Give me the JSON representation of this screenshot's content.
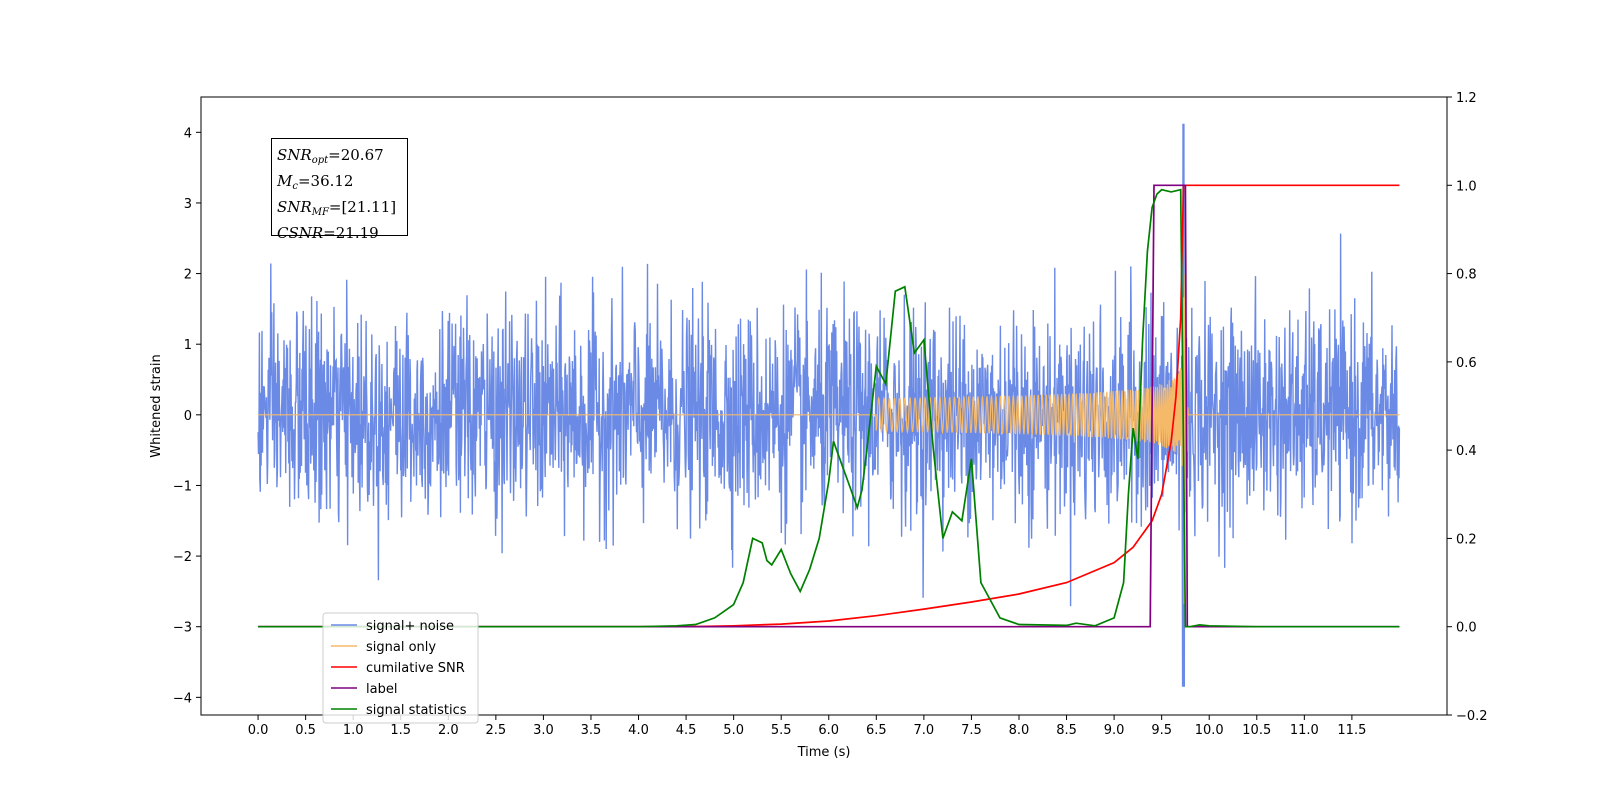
{
  "chart_data": {
    "type": "line",
    "xlabel": "Time (s)",
    "ylabel": "Whitened strain",
    "xlim": [
      -0.6,
      12.5
    ],
    "ylim": [
      -4.25,
      4.5
    ],
    "y2lim": [
      -0.2,
      1.2
    ],
    "xticks": [
      "0.0",
      "0.5",
      "1.0",
      "1.5",
      "2.0",
      "2.5",
      "3.0",
      "3.5",
      "4.0",
      "4.5",
      "5.0",
      "5.5",
      "6.0",
      "6.5",
      "7.0",
      "7.5",
      "8.0",
      "8.5",
      "9.0",
      "9.5",
      "10.0",
      "10.5",
      "11.0",
      "11.5"
    ],
    "yticks": [
      "4",
      "3",
      "2",
      "1",
      "0",
      "−1",
      "−2",
      "−3",
      "−4"
    ],
    "y2ticks": [
      "1.2",
      "1.0",
      "0.8",
      "0.6",
      "0.4",
      "0.2",
      "0.0",
      "−0.2"
    ],
    "legend_position": "lower-left",
    "colors": {
      "signal_noise": "#6a8ae6",
      "signal_only": "#f5b96a",
      "cumulative_snr": "#ff0000",
      "label": "#800080",
      "signal_statistics": "#008000"
    },
    "annotation": {
      "snr_opt_main": "SNR",
      "snr_opt_sub": "opt",
      "snr_opt_value": "=20.67",
      "mc_main": "M",
      "mc_sub": "c",
      "mc_value": "=36.12",
      "snr_mf_main": "SNR",
      "snr_mf_sub": "MF",
      "snr_mf_value": "=[21.11]",
      "csnr_main": "CSNR",
      "csnr_value": "=21.19"
    },
    "series": [
      {
        "name": "signal+ noise",
        "axis": "left",
        "t_start": 0.0,
        "t_end": 12.0,
        "amplitude_sigma": 0.72,
        "burst_peak": 4.12,
        "burst_min": -3.85,
        "burst_time": 9.73
      },
      {
        "name": "signal only",
        "axis": "left",
        "t_start": 6.5,
        "t_merger": 9.73,
        "peak": 3.55,
        "trough": -3.6
      },
      {
        "name": "cumilative SNR",
        "axis": "right",
        "x": [
          0,
          4.5,
          5.0,
          5.5,
          6.0,
          6.5,
          7.0,
          7.5,
          8.0,
          8.5,
          9.0,
          9.2,
          9.4,
          9.5,
          9.6,
          9.65,
          9.7,
          9.73,
          9.76,
          12.0
        ],
        "y": [
          0,
          0,
          0.002,
          0.006,
          0.013,
          0.025,
          0.04,
          0.056,
          0.074,
          0.1,
          0.145,
          0.18,
          0.24,
          0.3,
          0.42,
          0.52,
          0.7,
          1.0,
          1.0,
          1.0
        ]
      },
      {
        "name": "label",
        "axis": "right",
        "x": [
          0,
          9.38,
          9.42,
          9.75,
          9.77,
          12.0
        ],
        "y": [
          0,
          0,
          1,
          1,
          0,
          0
        ]
      },
      {
        "name": "signal statistics",
        "axis": "right",
        "x": [
          0,
          4.0,
          4.4,
          4.6,
          4.8,
          4.9,
          5.0,
          5.1,
          5.2,
          5.3,
          5.35,
          5.4,
          5.5,
          5.6,
          5.7,
          5.8,
          5.9,
          6.0,
          6.05,
          6.15,
          6.2,
          6.3,
          6.35,
          6.4,
          6.5,
          6.6,
          6.7,
          6.8,
          6.9,
          7.0,
          7.1,
          7.2,
          7.3,
          7.4,
          7.5,
          7.6,
          7.8,
          8.0,
          8.5,
          8.6,
          8.8,
          9.0,
          9.1,
          9.15,
          9.2,
          9.25,
          9.3,
          9.35,
          9.4,
          9.45,
          9.5,
          9.6,
          9.7,
          9.75,
          9.8,
          9.9,
          10.0,
          10.5,
          11.0,
          11.5,
          12.0
        ],
        "y": [
          0,
          0,
          0.002,
          0.005,
          0.02,
          0.035,
          0.05,
          0.1,
          0.2,
          0.19,
          0.15,
          0.14,
          0.175,
          0.12,
          0.08,
          0.13,
          0.2,
          0.33,
          0.42,
          0.36,
          0.33,
          0.27,
          0.31,
          0.4,
          0.59,
          0.55,
          0.76,
          0.77,
          0.62,
          0.65,
          0.4,
          0.2,
          0.26,
          0.24,
          0.38,
          0.1,
          0.02,
          0.005,
          0.003,
          0.008,
          0.002,
          0.02,
          0.1,
          0.3,
          0.45,
          0.38,
          0.65,
          0.85,
          0.95,
          0.98,
          0.99,
          0.985,
          0.99,
          0.0,
          0.0,
          0.004,
          0.002,
          0.0,
          0.0,
          0.0,
          0.0
        ]
      }
    ]
  }
}
